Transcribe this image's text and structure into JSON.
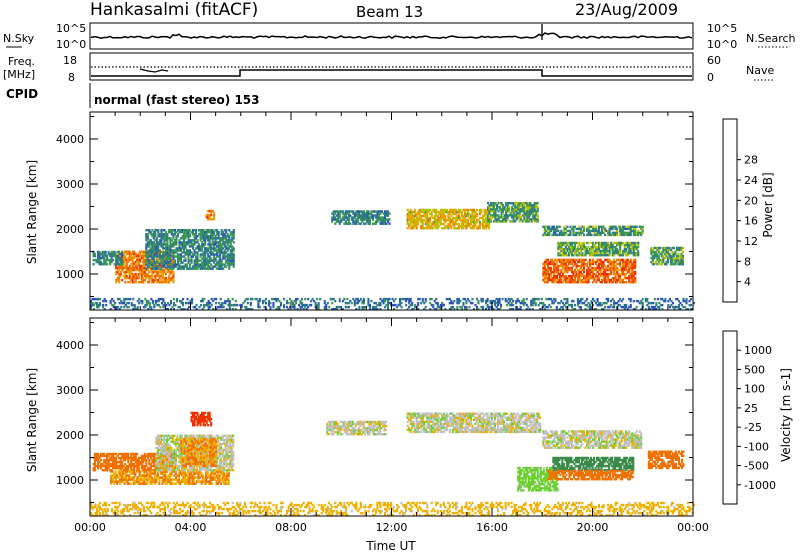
{
  "header": {
    "station": "Hankasalmi (fitACF)",
    "beam": "Beam 13",
    "date": "23/Aug/2009"
  },
  "status_panels": {
    "nsky_label": "N.Sky",
    "nsky_ticks": [
      "10^5",
      "10^0"
    ],
    "nsearch_label": "N.Search",
    "nsearch_ticks": [
      "10^5",
      "10^0"
    ],
    "freq_label_line1": "Freq.",
    "freq_label_line2": "[MHz]",
    "freq_ticks": [
      "18",
      "8"
    ],
    "nave_label": "Nave",
    "nave_ticks": [
      "60",
      "0"
    ],
    "cpid_label": "CPID",
    "cpid_text": "normal (fast stereo) 153"
  },
  "chart_data": [
    {
      "type": "heatmap",
      "name": "power",
      "ylabel": "Slant Range [km]",
      "xlabel": "",
      "x_ticks": [
        "00:00",
        "04:00",
        "08:00",
        "12:00",
        "16:00",
        "20:00",
        "00:00"
      ],
      "y_ticks": [
        1000,
        2000,
        3000,
        4000
      ],
      "ylim": [
        200,
        4600
      ],
      "xlim_hours": [
        0,
        24
      ],
      "colorbar": {
        "label": "Power [dB]",
        "ticks": [
          4,
          8,
          12,
          16,
          20,
          24,
          28
        ],
        "range": [
          0,
          32
        ],
        "colors": [
          "#1a1aff",
          "#2a4fc0",
          "#2e7a8a",
          "#3a9a50",
          "#b8c000",
          "#f0a000",
          "#f07000",
          "#f03000",
          "#e00000"
        ]
      },
      "regions": [
        {
          "t0": 1.0,
          "t1": 3.3,
          "r0": 800,
          "r1": 1500,
          "level": 22
        },
        {
          "t0": 0.1,
          "t1": 1.3,
          "r0": 1200,
          "r1": 1500,
          "level": 10
        },
        {
          "t0": 2.2,
          "t1": 5.7,
          "r0": 1100,
          "r1": 2000,
          "level": 10
        },
        {
          "t0": 4.6,
          "t1": 4.9,
          "r0": 2200,
          "r1": 2400,
          "level": 22
        },
        {
          "t0": 9.6,
          "t1": 11.9,
          "r0": 2100,
          "r1": 2400,
          "level": 10
        },
        {
          "t0": 12.6,
          "t1": 15.9,
          "r0": 2000,
          "r1": 2450,
          "level": 18
        },
        {
          "t0": 15.8,
          "t1": 17.8,
          "r0": 2150,
          "r1": 2600,
          "level": 12
        },
        {
          "t0": 18.0,
          "t1": 22.0,
          "r0": 1850,
          "r1": 2050,
          "level": 11
        },
        {
          "t0": 18.6,
          "t1": 21.8,
          "r0": 1400,
          "r1": 1700,
          "level": 13
        },
        {
          "t0": 18.0,
          "t1": 21.7,
          "r0": 800,
          "r1": 1300,
          "level": 24
        },
        {
          "t0": 22.3,
          "t1": 23.6,
          "r0": 1200,
          "r1": 1600,
          "level": 12
        },
        {
          "t0": 0.0,
          "t1": 24.0,
          "r0": 200,
          "r1": 450,
          "level": 8
        }
      ]
    },
    {
      "type": "heatmap",
      "name": "velocity",
      "ylabel": "Slant Range [km]",
      "xlabel": "Time UT",
      "x_ticks": [
        "00:00",
        "04:00",
        "08:00",
        "12:00",
        "16:00",
        "20:00",
        "00:00"
      ],
      "y_ticks": [
        1000,
        2000,
        3000,
        4000
      ],
      "ylim": [
        200,
        4600
      ],
      "xlim_hours": [
        0,
        24
      ],
      "colorbar": {
        "label": "Velocity [m s-1]",
        "ticks": [
          "1000",
          "500",
          "100",
          "25",
          "-25",
          "-100",
          "-500",
          "-1000"
        ],
        "colors": [
          "#1a3cd0",
          "#2f6aa8",
          "#3a8a4a",
          "#6ad030",
          "#c0c0c0",
          "#f0b000",
          "#f07000",
          "#f03000",
          "#e00000"
        ]
      },
      "regions": [
        {
          "t0": 0.1,
          "t1": 3.4,
          "r0": 1200,
          "r1": 1600,
          "level": -300
        },
        {
          "t0": 0.8,
          "t1": 5.5,
          "r0": 900,
          "r1": 1200,
          "level": -100
        },
        {
          "t0": 2.6,
          "t1": 5.7,
          "r0": 1200,
          "r1": 2000,
          "level": 0
        },
        {
          "t0": 3.6,
          "t1": 5.0,
          "r0": 1300,
          "r1": 1900,
          "level": -100
        },
        {
          "t0": 4.0,
          "t1": 4.8,
          "r0": 2200,
          "r1": 2500,
          "level": -800
        },
        {
          "t0": 9.4,
          "t1": 11.8,
          "r0": 2000,
          "r1": 2300,
          "level": 0
        },
        {
          "t0": 12.6,
          "t1": 17.9,
          "r0": 2050,
          "r1": 2500,
          "level": 0
        },
        {
          "t0": 18.0,
          "t1": 21.9,
          "r0": 1700,
          "r1": 2100,
          "level": 0
        },
        {
          "t0": 17.0,
          "t1": 18.6,
          "r0": 750,
          "r1": 1250,
          "level": 60
        },
        {
          "t0": 18.4,
          "t1": 21.6,
          "r0": 1200,
          "r1": 1500,
          "level": 300
        },
        {
          "t0": 18.2,
          "t1": 21.6,
          "r0": 1000,
          "r1": 1200,
          "level": -150
        },
        {
          "t0": 22.2,
          "t1": 23.6,
          "r0": 1250,
          "r1": 1650,
          "level": -300
        },
        {
          "t0": 0.0,
          "t1": 24.0,
          "r0": 200,
          "r1": 500,
          "level": -60
        }
      ]
    }
  ]
}
